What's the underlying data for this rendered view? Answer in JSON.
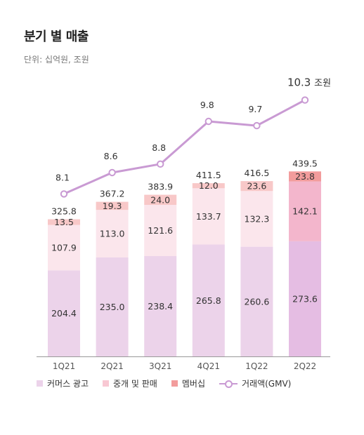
{
  "header": {
    "title": "분기 별 매출",
    "subtitle": "단위: 십억원, 조원"
  },
  "legend": [
    {
      "label": "커머스 광고",
      "color": "#ecd3ea"
    },
    {
      "label": "중개 및 판매",
      "color": "#f8c8d3"
    },
    {
      "label": "멤버십",
      "color": "#f29c9c"
    },
    {
      "label": "거래액(GMV)",
      "color": "#c99ad3"
    }
  ],
  "chart_data": {
    "type": "bar",
    "stacked": true,
    "categories": [
      "1Q21",
      "2Q21",
      "3Q21",
      "4Q21",
      "1Q22",
      "2Q22"
    ],
    "series": [
      {
        "name": "커머스 광고",
        "values": [
          204.4,
          235.0,
          238.4,
          265.8,
          260.6,
          273.6
        ],
        "labels": [
          "204.4",
          "235.0",
          "238.4",
          "265.8",
          "260.6",
          "273.6"
        ]
      },
      {
        "name": "중개 및 판매",
        "values": [
          107.9,
          113.0,
          121.6,
          133.7,
          132.3,
          142.1
        ],
        "labels": [
          "107.9",
          "113.0",
          "121.6",
          "133.7",
          "132.3",
          "142.1"
        ]
      },
      {
        "name": "멤버십",
        "values": [
          13.5,
          19.3,
          24.0,
          12.0,
          23.6,
          23.8
        ],
        "labels": [
          "13.5",
          "19.3",
          "24.0",
          "12.0",
          "23.6",
          "23.8"
        ]
      }
    ],
    "totals": [
      "325.8",
      "367.2",
      "383.9",
      "411.5",
      "416.5",
      "439.5"
    ],
    "line": {
      "name": "거래액(GMV)",
      "values": [
        8.1,
        8.6,
        8.8,
        9.8,
        9.7,
        10.3
      ],
      "labels": [
        "8.1",
        "8.6",
        "8.8",
        "9.8",
        "9.7",
        "10.3"
      ],
      "last_label_unit": "조원"
    },
    "colors": {
      "commerce_ad": "#ecd3ea",
      "brokerage": "#fbe6ec",
      "membership": "#f8c8c8",
      "highlight_commerce_ad": "#e5bde3",
      "highlight_brokerage": "#f3b6cc",
      "highlight_membership": "#f29c9c",
      "line": "#c99ad3",
      "axis": "#999999"
    },
    "highlight_index": 5,
    "ylim": [
      0,
      480
    ],
    "line_ylim": [
      6.2,
      11.0
    ]
  }
}
